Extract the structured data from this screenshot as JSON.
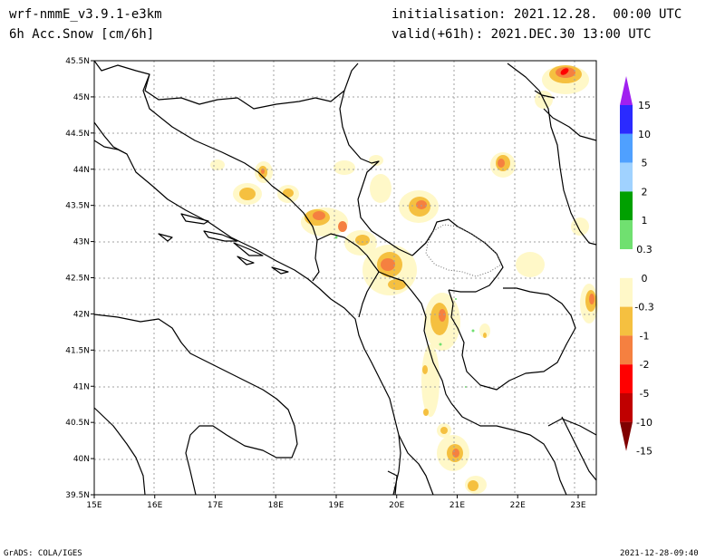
{
  "header": {
    "model": "wrf-nmmE_v3.9.1-e3km",
    "field": "6h Acc.Snow [cm/6h]",
    "init": "initialisation: 2021.12.28.  00:00 UTC",
    "valid": "valid(+61h): 2021.DEC.30 13:00 UTC"
  },
  "map": {
    "lon_range": [
      15,
      23.3
    ],
    "lat_range": [
      39.5,
      45.5
    ],
    "lon_ticks": [
      "15E",
      "16E",
      "17E",
      "18E",
      "19E",
      "20E",
      "21E",
      "22E",
      "23E"
    ],
    "lat_ticks": [
      "45.5N",
      "45N",
      "44.5N",
      "44N",
      "43.5N",
      "43N",
      "42.5N",
      "42N",
      "41.5N",
      "41N",
      "40.5N",
      "40N",
      "39.5N"
    ],
    "grid": true
  },
  "colorbar": {
    "labels": [
      "15",
      "10",
      "5",
      "2",
      "1",
      "0.3",
      "0",
      "-0.3",
      "-1",
      "-2",
      "-5",
      "-10",
      "-15"
    ],
    "colors": [
      "#a020f0",
      "#2a2aff",
      "#4fa0ff",
      "#a0d2ff",
      "#00a000",
      "#70e070",
      "#ffffff",
      "#fff8c8",
      "#f5c040",
      "#f58040",
      "#ff0000",
      "#c00000",
      "#800000"
    ]
  },
  "footer": {
    "left": "GrADS: COLA/IGES",
    "right": "2021-12-28-09:40"
  }
}
